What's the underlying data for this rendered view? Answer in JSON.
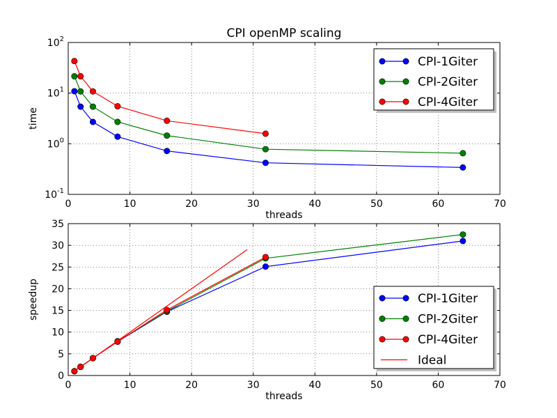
{
  "chart_data": [
    {
      "type": "line",
      "title": "CPI openMP scaling",
      "xlabel": "threads",
      "ylabel": "time",
      "xlim": [
        0,
        70
      ],
      "ylim": [
        0.1,
        100
      ],
      "yscale": "log",
      "grid": true,
      "legend_position": "top-right",
      "x_ticks": [
        "0",
        "10",
        "20",
        "30",
        "40",
        "50",
        "60",
        "70"
      ],
      "y_ticks": [
        {
          "base": "10",
          "exp": "-1"
        },
        {
          "base": "10",
          "exp": "0"
        },
        {
          "base": "10",
          "exp": "1"
        },
        {
          "base": "10",
          "exp": "2"
        }
      ],
      "series": [
        {
          "name": "CPI-1Giter",
          "color": "#0000ff",
          "x": [
            1,
            2,
            4,
            8,
            16,
            32,
            64
          ],
          "values": [
            10.9,
            5.4,
            2.7,
            1.38,
            0.72,
            0.42,
            0.34
          ]
        },
        {
          "name": "CPI-2Giter",
          "color": "#008000",
          "x": [
            1,
            2,
            4,
            8,
            16,
            32,
            64
          ],
          "values": [
            21.5,
            10.8,
            5.4,
            2.7,
            1.45,
            0.78,
            0.65
          ]
        },
        {
          "name": "CPI-4Giter",
          "color": "#ff0000",
          "x": [
            1,
            2,
            4,
            8,
            16,
            32
          ],
          "values": [
            43,
            21.5,
            10.8,
            5.5,
            2.85,
            1.58
          ]
        }
      ]
    },
    {
      "type": "line",
      "title": "",
      "xlabel": "threads",
      "ylabel": "speedup",
      "xlim": [
        0,
        70
      ],
      "ylim": [
        0,
        35
      ],
      "grid": true,
      "legend_position": "bottom-right",
      "x_ticks": [
        "0",
        "10",
        "20",
        "30",
        "40",
        "50",
        "60",
        "70"
      ],
      "y_ticks": [
        "0",
        "5",
        "10",
        "15",
        "20",
        "25",
        "30",
        "35"
      ],
      "series": [
        {
          "name": "CPI-1Giter",
          "color": "#0000ff",
          "markers": true,
          "x": [
            1,
            2,
            4,
            8,
            16,
            32,
            64
          ],
          "values": [
            1,
            2,
            4,
            7.8,
            14.7,
            25.1,
            31
          ]
        },
        {
          "name": "CPI-2Giter",
          "color": "#008000",
          "markers": true,
          "x": [
            1,
            2,
            4,
            8,
            16,
            32,
            64
          ],
          "values": [
            1,
            2,
            4,
            7.9,
            14.8,
            27,
            32.5
          ]
        },
        {
          "name": "CPI-4Giter",
          "color": "#ff0000",
          "markers": true,
          "x": [
            1,
            2,
            4,
            8,
            16,
            32
          ],
          "values": [
            1,
            2,
            4,
            7.8,
            15.1,
            27.3
          ]
        },
        {
          "name": "Ideal",
          "color": "#ff0000",
          "markers": false,
          "x": [
            1,
            29
          ],
          "values": [
            1,
            29
          ]
        }
      ]
    }
  ]
}
